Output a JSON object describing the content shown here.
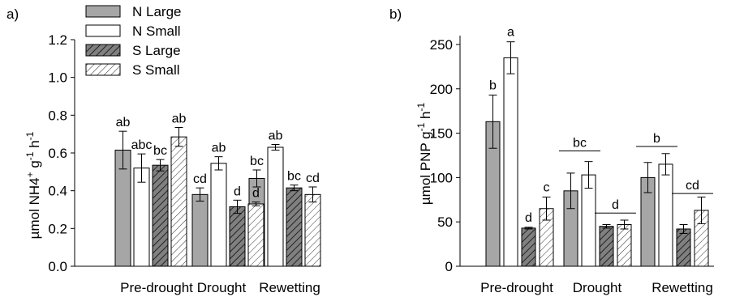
{
  "figure": {
    "colors": {
      "n_large": "#a6a6a6",
      "n_small": "#ffffff",
      "s_large": "#808080",
      "hatch_stroke": "#333333",
      "axis": "#000000"
    }
  },
  "chart_data": [
    {
      "type": "bar",
      "panel_label": "a)",
      "ylabel_main": "µmol NH4",
      "ylabel_sup1": "+",
      "ylabel_mid": " g",
      "ylabel_sup2": "-1",
      "ylabel_tail": " h",
      "ylabel_sup3": "-1",
      "ylim": [
        0,
        1.2
      ],
      "yticks": [
        "0.0",
        "0.2",
        "0.4",
        "0.6",
        "0.8",
        "1.0",
        "1.2"
      ],
      "ytick_values": [
        0,
        0.2,
        0.4,
        0.6,
        0.8,
        1.0,
        1.2
      ],
      "categories": [
        "Pre-drought",
        "Drought",
        "Rewetting"
      ],
      "legend": {
        "placement": "top-left",
        "entries": [
          "N Large",
          "N Small",
          "S Large",
          "S Small"
        ]
      },
      "series": [
        {
          "name": "N Large",
          "style": "solid-gray",
          "values": [
            0.615,
            0.38,
            0.465
          ],
          "errors": [
            0.1,
            0.035,
            0.045
          ],
          "letters": [
            "ab",
            "cd",
            "bc"
          ]
        },
        {
          "name": "N Small",
          "style": "white",
          "values": [
            0.52,
            0.545,
            0.63
          ],
          "errors": [
            0.075,
            0.035,
            0.015
          ],
          "letters": [
            "abc",
            "ab",
            "ab"
          ]
        },
        {
          "name": "S Large",
          "style": "hatch-dark",
          "values": [
            0.535,
            0.315,
            0.415
          ],
          "errors": [
            0.03,
            0.035,
            0.015
          ],
          "letters": [
            "bc",
            "d",
            "bc"
          ]
        },
        {
          "name": "S Small",
          "style": "hatch-light",
          "values": [
            0.685,
            0.33,
            0.38
          ],
          "errors": [
            0.05,
            0.01,
            0.04
          ],
          "letters": [
            "ab",
            "d",
            "cd"
          ]
        }
      ]
    },
    {
      "type": "bar",
      "panel_label": "b)",
      "ylabel_main": "µmol PNP g",
      "ylabel_sup1": "-1",
      "ylabel_tail": " h",
      "ylabel_sup2": "-1",
      "ylim": [
        0,
        260
      ],
      "yticks": [
        "0",
        "50",
        "100",
        "150",
        "200",
        "250"
      ],
      "ytick_values": [
        0,
        50,
        100,
        150,
        200,
        250
      ],
      "categories": [
        "Pre-drought",
        "Drought",
        "Rewetting"
      ],
      "series": [
        {
          "name": "N Large",
          "style": "solid-gray",
          "values": [
            163,
            85,
            100
          ],
          "errors": [
            30,
            20,
            17
          ]
        },
        {
          "name": "N Small",
          "style": "white",
          "values": [
            235,
            103,
            115
          ],
          "errors": [
            18,
            15,
            12
          ]
        },
        {
          "name": "S Large",
          "style": "hatch-dark",
          "values": [
            43,
            45,
            42
          ],
          "errors": [
            1,
            2,
            5
          ]
        },
        {
          "name": "S Small",
          "style": "hatch-light",
          "values": [
            65,
            47,
            63
          ],
          "errors": [
            13,
            5,
            15
          ]
        }
      ],
      "letters": {
        "single": [
          {
            "category": 0,
            "series": 0,
            "text": "b"
          },
          {
            "category": 0,
            "series": 1,
            "text": "a"
          },
          {
            "category": 0,
            "series": 2,
            "text": "d"
          },
          {
            "category": 0,
            "series": 3,
            "text": "c"
          }
        ],
        "grouped": [
          {
            "category": 1,
            "series_from": 0,
            "series_to": 1,
            "value": 130,
            "text": "bc"
          },
          {
            "category": 1,
            "series_from": 2,
            "series_to": 3,
            "value": 60,
            "text": "d"
          },
          {
            "category": 2,
            "series_from": 0,
            "series_to": 1,
            "value": 135,
            "text": "b"
          },
          {
            "category": 2,
            "series_from": 2,
            "series_to": 3,
            "value": 82,
            "text": "cd"
          }
        ]
      }
    }
  ]
}
